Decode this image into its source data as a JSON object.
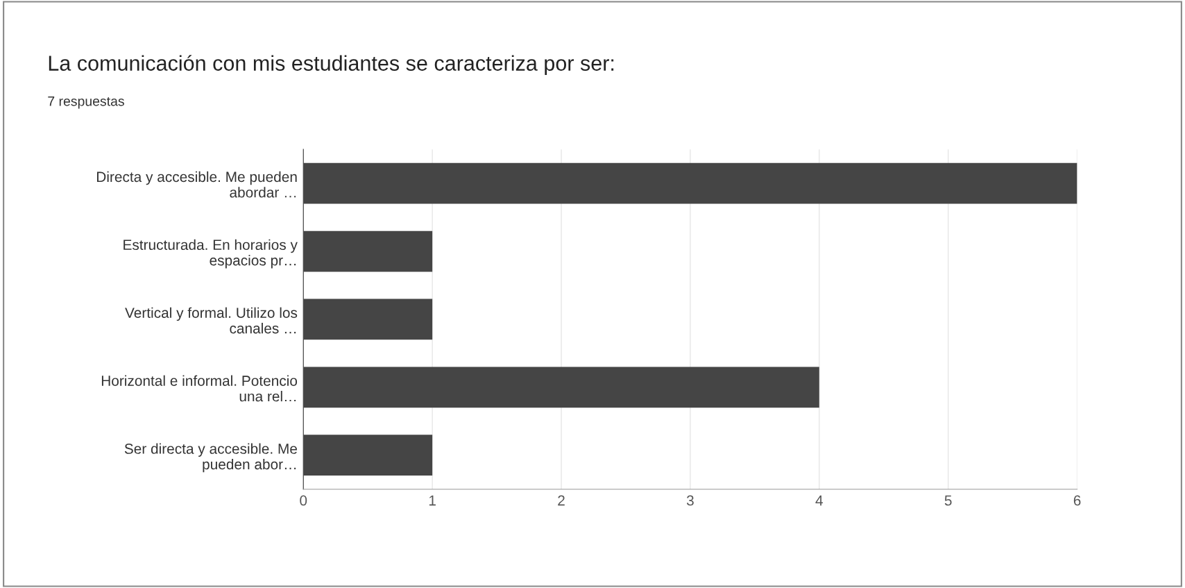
{
  "chart_data": {
    "type": "bar",
    "orientation": "horizontal",
    "title": "La comunicación con mis estudiantes se caracteriza por ser:",
    "subtitle": "7 respuestas",
    "categories": [
      "Directa y accesible. Me pueden\nabordar …",
      "Estructurada. En horarios y\nespacios pr…",
      "Vertical y formal. Utilizo los\ncanales …",
      "Horizontal e informal. Potencio\nuna rel…",
      "Ser directa y accesible. Me\npueden abor…"
    ],
    "values": [
      6,
      1,
      1,
      4,
      1
    ],
    "color": "#454545",
    "xlim": [
      0,
      6
    ],
    "xticks": [
      0,
      1,
      2,
      3,
      4,
      5,
      6
    ],
    "grid": "x"
  }
}
